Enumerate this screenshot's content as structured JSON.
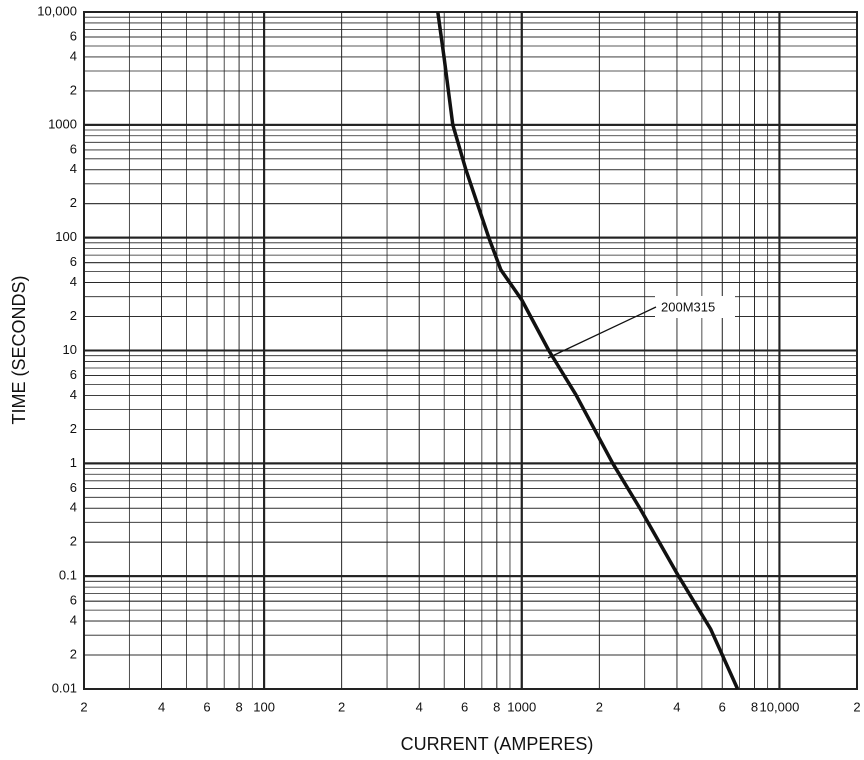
{
  "chart_data": {
    "type": "line",
    "x_label": "CURRENT (AMPERES)",
    "y_label": "TIME (SECONDS)",
    "log_x": true,
    "log_y": true,
    "grid": true,
    "xlim": [
      20,
      20000
    ],
    "xticks": [
      {
        "value": 20,
        "label": "2"
      },
      {
        "value": 40,
        "label": "4"
      },
      {
        "value": 60,
        "label": "6"
      },
      {
        "value": 80,
        "label": "8"
      },
      100,
      {
        "value": 200,
        "label": "2"
      },
      {
        "value": 400,
        "label": "4"
      },
      {
        "value": 600,
        "label": "6"
      },
      {
        "value": 800,
        "label": "8"
      },
      1000,
      {
        "value": 2000,
        "label": "2"
      },
      {
        "value": 4000,
        "label": "4"
      },
      {
        "value": 6000,
        "label": "6"
      },
      {
        "value": 8000,
        "label": "8"
      },
      {
        "value": 10000,
        "label": "10,000"
      },
      {
        "value": 20000,
        "label": "2"
      }
    ],
    "ylim": [
      0.01,
      10000
    ],
    "yticks": [
      {
        "value": 10000,
        "label": "10,000"
      },
      {
        "value": 6000,
        "label": "6"
      },
      {
        "value": 4000,
        "label": "4"
      },
      {
        "value": 2000,
        "label": "2"
      },
      1000,
      {
        "value": 600,
        "label": "6"
      },
      {
        "value": 400,
        "label": "4"
      },
      {
        "value": 200,
        "label": "2"
      },
      100,
      {
        "value": 60,
        "label": "6"
      },
      {
        "value": 40,
        "label": "4"
      },
      {
        "value": 20,
        "label": "2"
      },
      10,
      {
        "value": 6,
        "label": "6"
      },
      {
        "value": 4,
        "label": "4"
      },
      {
        "value": 2,
        "label": "2"
      },
      1,
      {
        "value": 0.6,
        "label": "6"
      },
      {
        "value": 0.4,
        "label": "4"
      },
      {
        "value": 0.2,
        "label": "2"
      },
      0.1,
      {
        "value": 0.06,
        "label": "6"
      },
      {
        "value": 0.04,
        "label": "4"
      },
      {
        "value": 0.02,
        "label": "2"
      },
      0.01
    ],
    "series": [
      {
        "name": "200M315",
        "color": "#111111",
        "x": [
          472,
          499,
          540,
          607,
          745,
          829,
          1000,
          1273,
          1620,
          2254,
          2893,
          4063,
          5405,
          6879
        ],
        "values": [
          10000,
          4000,
          1000,
          400,
          100,
          52,
          28,
          10,
          4.07,
          1,
          0.39,
          0.1,
          0.034,
          0.01
        ]
      }
    ]
  }
}
